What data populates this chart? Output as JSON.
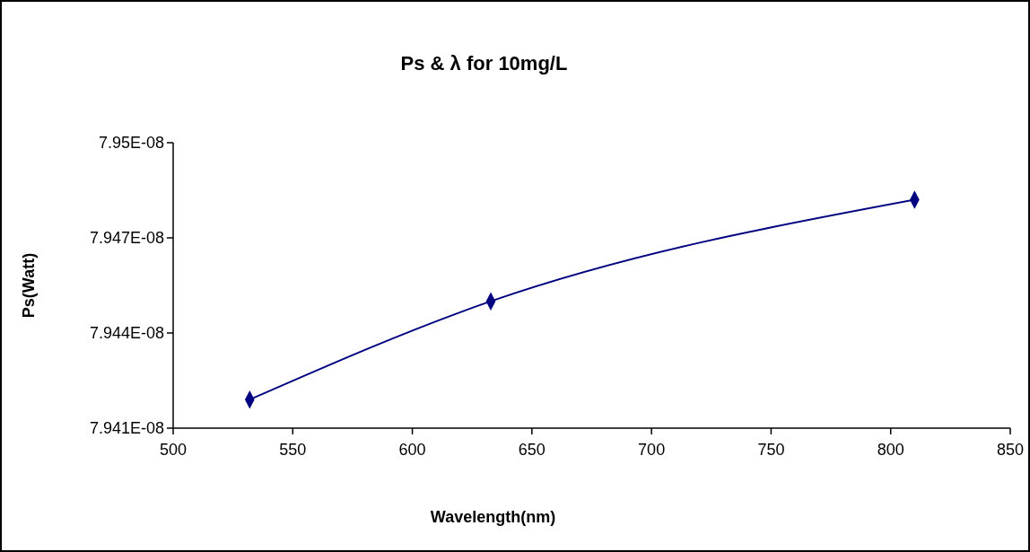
{
  "chart_data": {
    "type": "line",
    "title": "Ps & λ for 10mg/L",
    "xlabel": "Wavelength(nm)",
    "ylabel": "Ps(Watt)",
    "x": [
      532,
      632.8,
      810
    ],
    "series": [
      {
        "color": "#000080",
        "values": [
          7.9419e-08,
          7.945e-08,
          7.9482e-08
        ]
      }
    ],
    "xlim": [
      500,
      850
    ],
    "xticks": [
      500,
      550,
      600,
      650,
      700,
      750,
      800,
      850
    ],
    "ylim": [
      7.941e-08,
      7.95e-08
    ],
    "yticks": [
      {
        "value": 7.941e-08,
        "label": "7.941E-08"
      },
      {
        "value": 7.944e-08,
        "label": "7.944E-08"
      },
      {
        "value": 7.947e-08,
        "label": "7.947E-08"
      },
      {
        "value": 7.95e-08,
        "label": "7.95E-08"
      }
    ],
    "marker": "diamond",
    "line_style": "solid",
    "grid": false
  }
}
